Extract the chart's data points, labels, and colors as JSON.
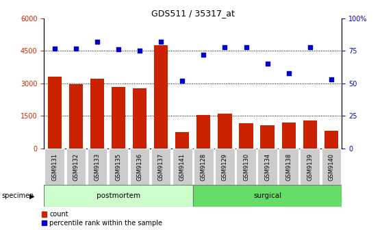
{
  "title": "GDS511 / 35317_at",
  "categories": [
    "GSM9131",
    "GSM9132",
    "GSM9133",
    "GSM9135",
    "GSM9136",
    "GSM9137",
    "GSM9141",
    "GSM9128",
    "GSM9129",
    "GSM9130",
    "GSM9134",
    "GSM9138",
    "GSM9139",
    "GSM9140"
  ],
  "bar_values": [
    3300,
    2960,
    3200,
    2820,
    2760,
    4750,
    750,
    1530,
    1600,
    1170,
    1080,
    1200,
    1280,
    800
  ],
  "dot_values": [
    77,
    77,
    82,
    76,
    75,
    82,
    52,
    72,
    78,
    78,
    65,
    58,
    78,
    53
  ],
  "bar_color": "#cc2200",
  "dot_color": "#0000cc",
  "ylim_left": [
    0,
    6000
  ],
  "ylim_right": [
    0,
    100
  ],
  "yticks_left": [
    0,
    1500,
    3000,
    4500,
    6000
  ],
  "ytick_labels_left": [
    "0",
    "1500",
    "3000",
    "4500",
    "6000"
  ],
  "yticks_right": [
    0,
    25,
    50,
    75,
    100
  ],
  "ytick_labels_right": [
    "0",
    "25",
    "50",
    "75",
    "100%"
  ],
  "grid_values": [
    1500,
    3000,
    4500
  ],
  "n_postmortem": 7,
  "n_surgical": 7,
  "postmortem_color": "#ccffcc",
  "surgical_color": "#66dd66",
  "postmortem_label": "postmortem",
  "surgical_label": "surgical",
  "specimen_label": "specimen",
  "legend_count_label": "count",
  "legend_pct_label": "percentile rank within the sample",
  "tick_label_bg": "#cccccc",
  "background_color": "#ffffff",
  "title_fontsize": 9,
  "axis_fontsize": 7,
  "tick_fontsize": 6
}
